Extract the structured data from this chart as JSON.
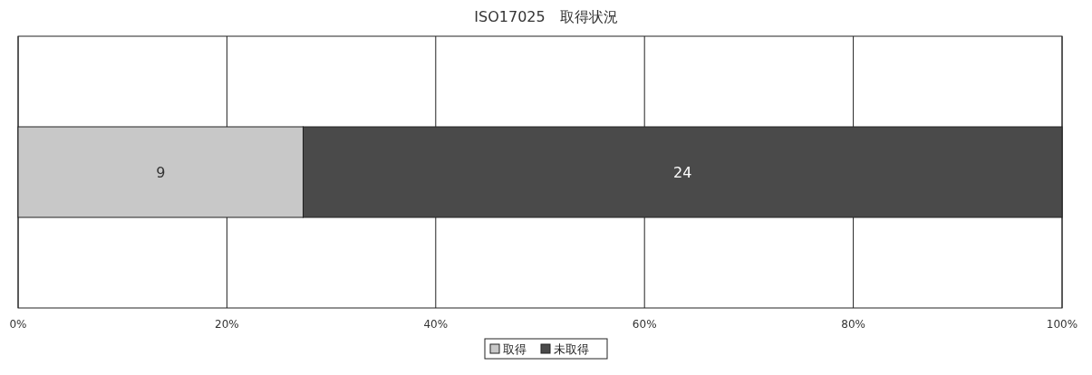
{
  "chart_data": {
    "type": "bar",
    "title": "ISO17025　取得状況",
    "orientation": "horizontal",
    "stacked": true,
    "categories": [
      null
    ],
    "series": [
      {
        "name": "取得",
        "color": "#c8c8c8",
        "values": [
          27.3
        ]
      },
      {
        "name": "未取得",
        "color": "#4a4a4a",
        "values": [
          72.7
        ]
      }
    ],
    "annotations": [
      "9",
      "24"
    ],
    "xlim": [
      0,
      100
    ],
    "xticks": [
      {
        "value": 0,
        "label": "0%"
      },
      {
        "value": 20,
        "label": "20%"
      },
      {
        "value": 40,
        "label": "40%"
      },
      {
        "value": 60,
        "label": "60%"
      },
      {
        "value": 80,
        "label": "80%"
      },
      {
        "value": 100,
        "label": "100%"
      }
    ],
    "grid": "x",
    "legend": "bottom"
  }
}
